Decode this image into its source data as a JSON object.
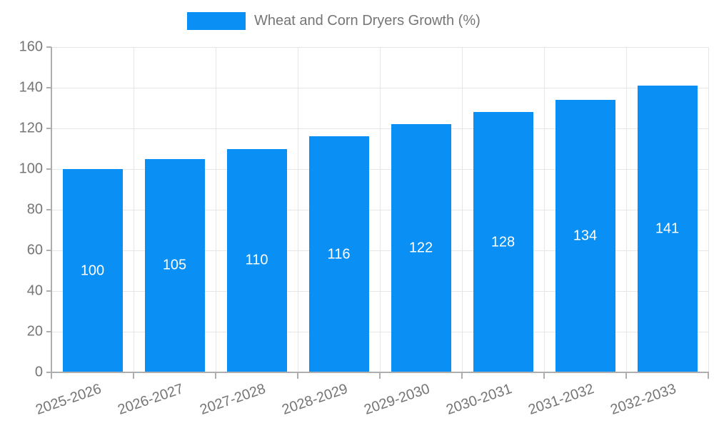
{
  "chart_data": {
    "type": "bar",
    "title": "",
    "legend": {
      "label": "Wheat and Corn Dryers Growth (%)",
      "position": "top"
    },
    "categories": [
      "2025-2026",
      "2026-2027",
      "2027-2028",
      "2028-2029",
      "2029-2030",
      "2030-2031",
      "2031-2032",
      "2032-2033"
    ],
    "series": [
      {
        "name": "Wheat and Corn Dryers Growth (%)",
        "values": [
          100,
          105,
          110,
          116,
          122,
          128,
          134,
          141
        ]
      }
    ],
    "bar_value_labels": [
      "100",
      "105",
      "110",
      "116",
      "122",
      "128",
      "134",
      "141"
    ],
    "xlabel": "",
    "ylabel": "",
    "ylim": [
      0,
      160
    ],
    "ytick_step": 20,
    "yticks": [
      0,
      20,
      40,
      60,
      80,
      100,
      120,
      140,
      160
    ],
    "grid": true,
    "colors": {
      "bar": "#0A90F5",
      "grid": "#E6E6E6",
      "axis": "#AEAEAE",
      "tick_text": "#757575",
      "legend_text": "#757575",
      "bar_label_text": "#FFFFFF",
      "background": "#FFFFFF"
    }
  }
}
